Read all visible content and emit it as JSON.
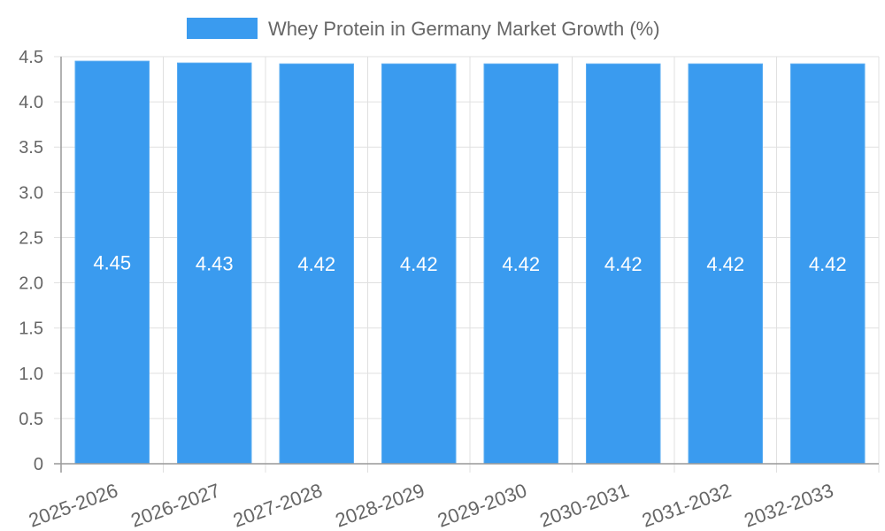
{
  "chart_data": {
    "type": "bar",
    "title": "",
    "categories": [
      "2025-2026",
      "2026-2027",
      "2027-2028",
      "2028-2029",
      "2029-2030",
      "2030-2031",
      "2031-2032",
      "2032-2033"
    ],
    "series": [
      {
        "name": "Whey Protein in Germany Market Growth (%)",
        "values": [
          4.45,
          4.43,
          4.42,
          4.42,
          4.42,
          4.42,
          4.42,
          4.42
        ],
        "color": "#3a9bef"
      }
    ],
    "data_labels": [
      "4.45",
      "4.43",
      "4.42",
      "4.42",
      "4.42",
      "4.42",
      "4.42",
      "4.42"
    ],
    "xlabel": "",
    "ylabel": "",
    "ylim": [
      0,
      4.5
    ],
    "yticks": [
      "0",
      "0.5",
      "1.0",
      "1.5",
      "2.0",
      "2.5",
      "3.0",
      "3.5",
      "4.0",
      "4.5"
    ],
    "grid": true,
    "legend_position": "top"
  }
}
